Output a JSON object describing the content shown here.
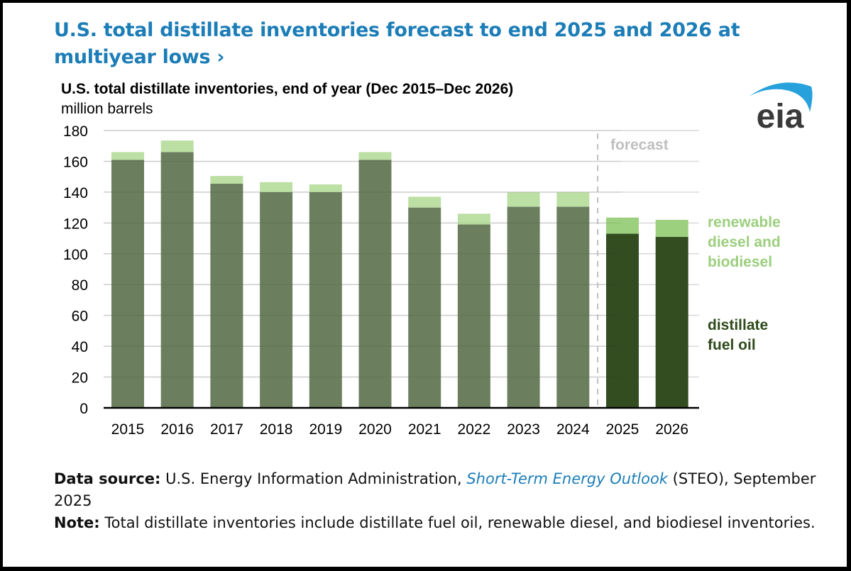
{
  "headline": {
    "text": "U.S. total distillate inventories forecast to end 2025 and 2026 at multiyear lows",
    "chevron": "›"
  },
  "logo": {
    "text": "eia",
    "icon": "eia-logo"
  },
  "footer": {
    "source_label": "Data source:",
    "source_text": "U.S. Energy Information Administration,",
    "source_link": "Short-Term Energy Outlook",
    "source_suffix": "(STEO), September 2025",
    "note_label": "Note:",
    "note_text": "Total distillate inventories include distillate fuel oil, renewable diesel, and biodiesel inventories."
  },
  "chart_data": {
    "type": "bar",
    "stacked": true,
    "title": "U.S. total distillate inventories, end of year (Dec 2015–Dec 2026)",
    "ylabel": "million barrels",
    "xlabel": "",
    "ylim": [
      0,
      180
    ],
    "yticks": [
      0,
      20,
      40,
      60,
      80,
      100,
      120,
      140,
      160,
      180
    ],
    "grid": true,
    "categories": [
      "2015",
      "2016",
      "2017",
      "2018",
      "2019",
      "2020",
      "2021",
      "2022",
      "2023",
      "2024",
      "2025",
      "2026"
    ],
    "forecast_start_index": 10,
    "forecast_label": "forecast",
    "series": [
      {
        "name": "distillate fuel oil",
        "legend_label": [
          "distillate",
          "fuel oil"
        ],
        "color_historical": "#6b7f5e",
        "color_forecast": "#334d20",
        "values": [
          161,
          166,
          145.5,
          140,
          140,
          161,
          130,
          119,
          130.5,
          130.5,
          113,
          111
        ]
      },
      {
        "name": "renewable diesel and biodiesel",
        "legend_label": [
          "renewable",
          "diesel and",
          "biodiesel"
        ],
        "color_historical": "#bcdfa4",
        "color_forecast": "#9ccf7e",
        "values": [
          5,
          7.5,
          5,
          6.5,
          5,
          5,
          7,
          7,
          9.5,
          9.5,
          10.5,
          11
        ]
      }
    ],
    "legend": "right",
    "colors": {
      "grid": "#d9d9d9",
      "axis": "#000000",
      "forecast_divider": "#bfbfbf",
      "forecast_text": "#bfbfbf",
      "legend_renewable": "#9ccf7e",
      "legend_distillate": "#2f4a1c"
    }
  }
}
